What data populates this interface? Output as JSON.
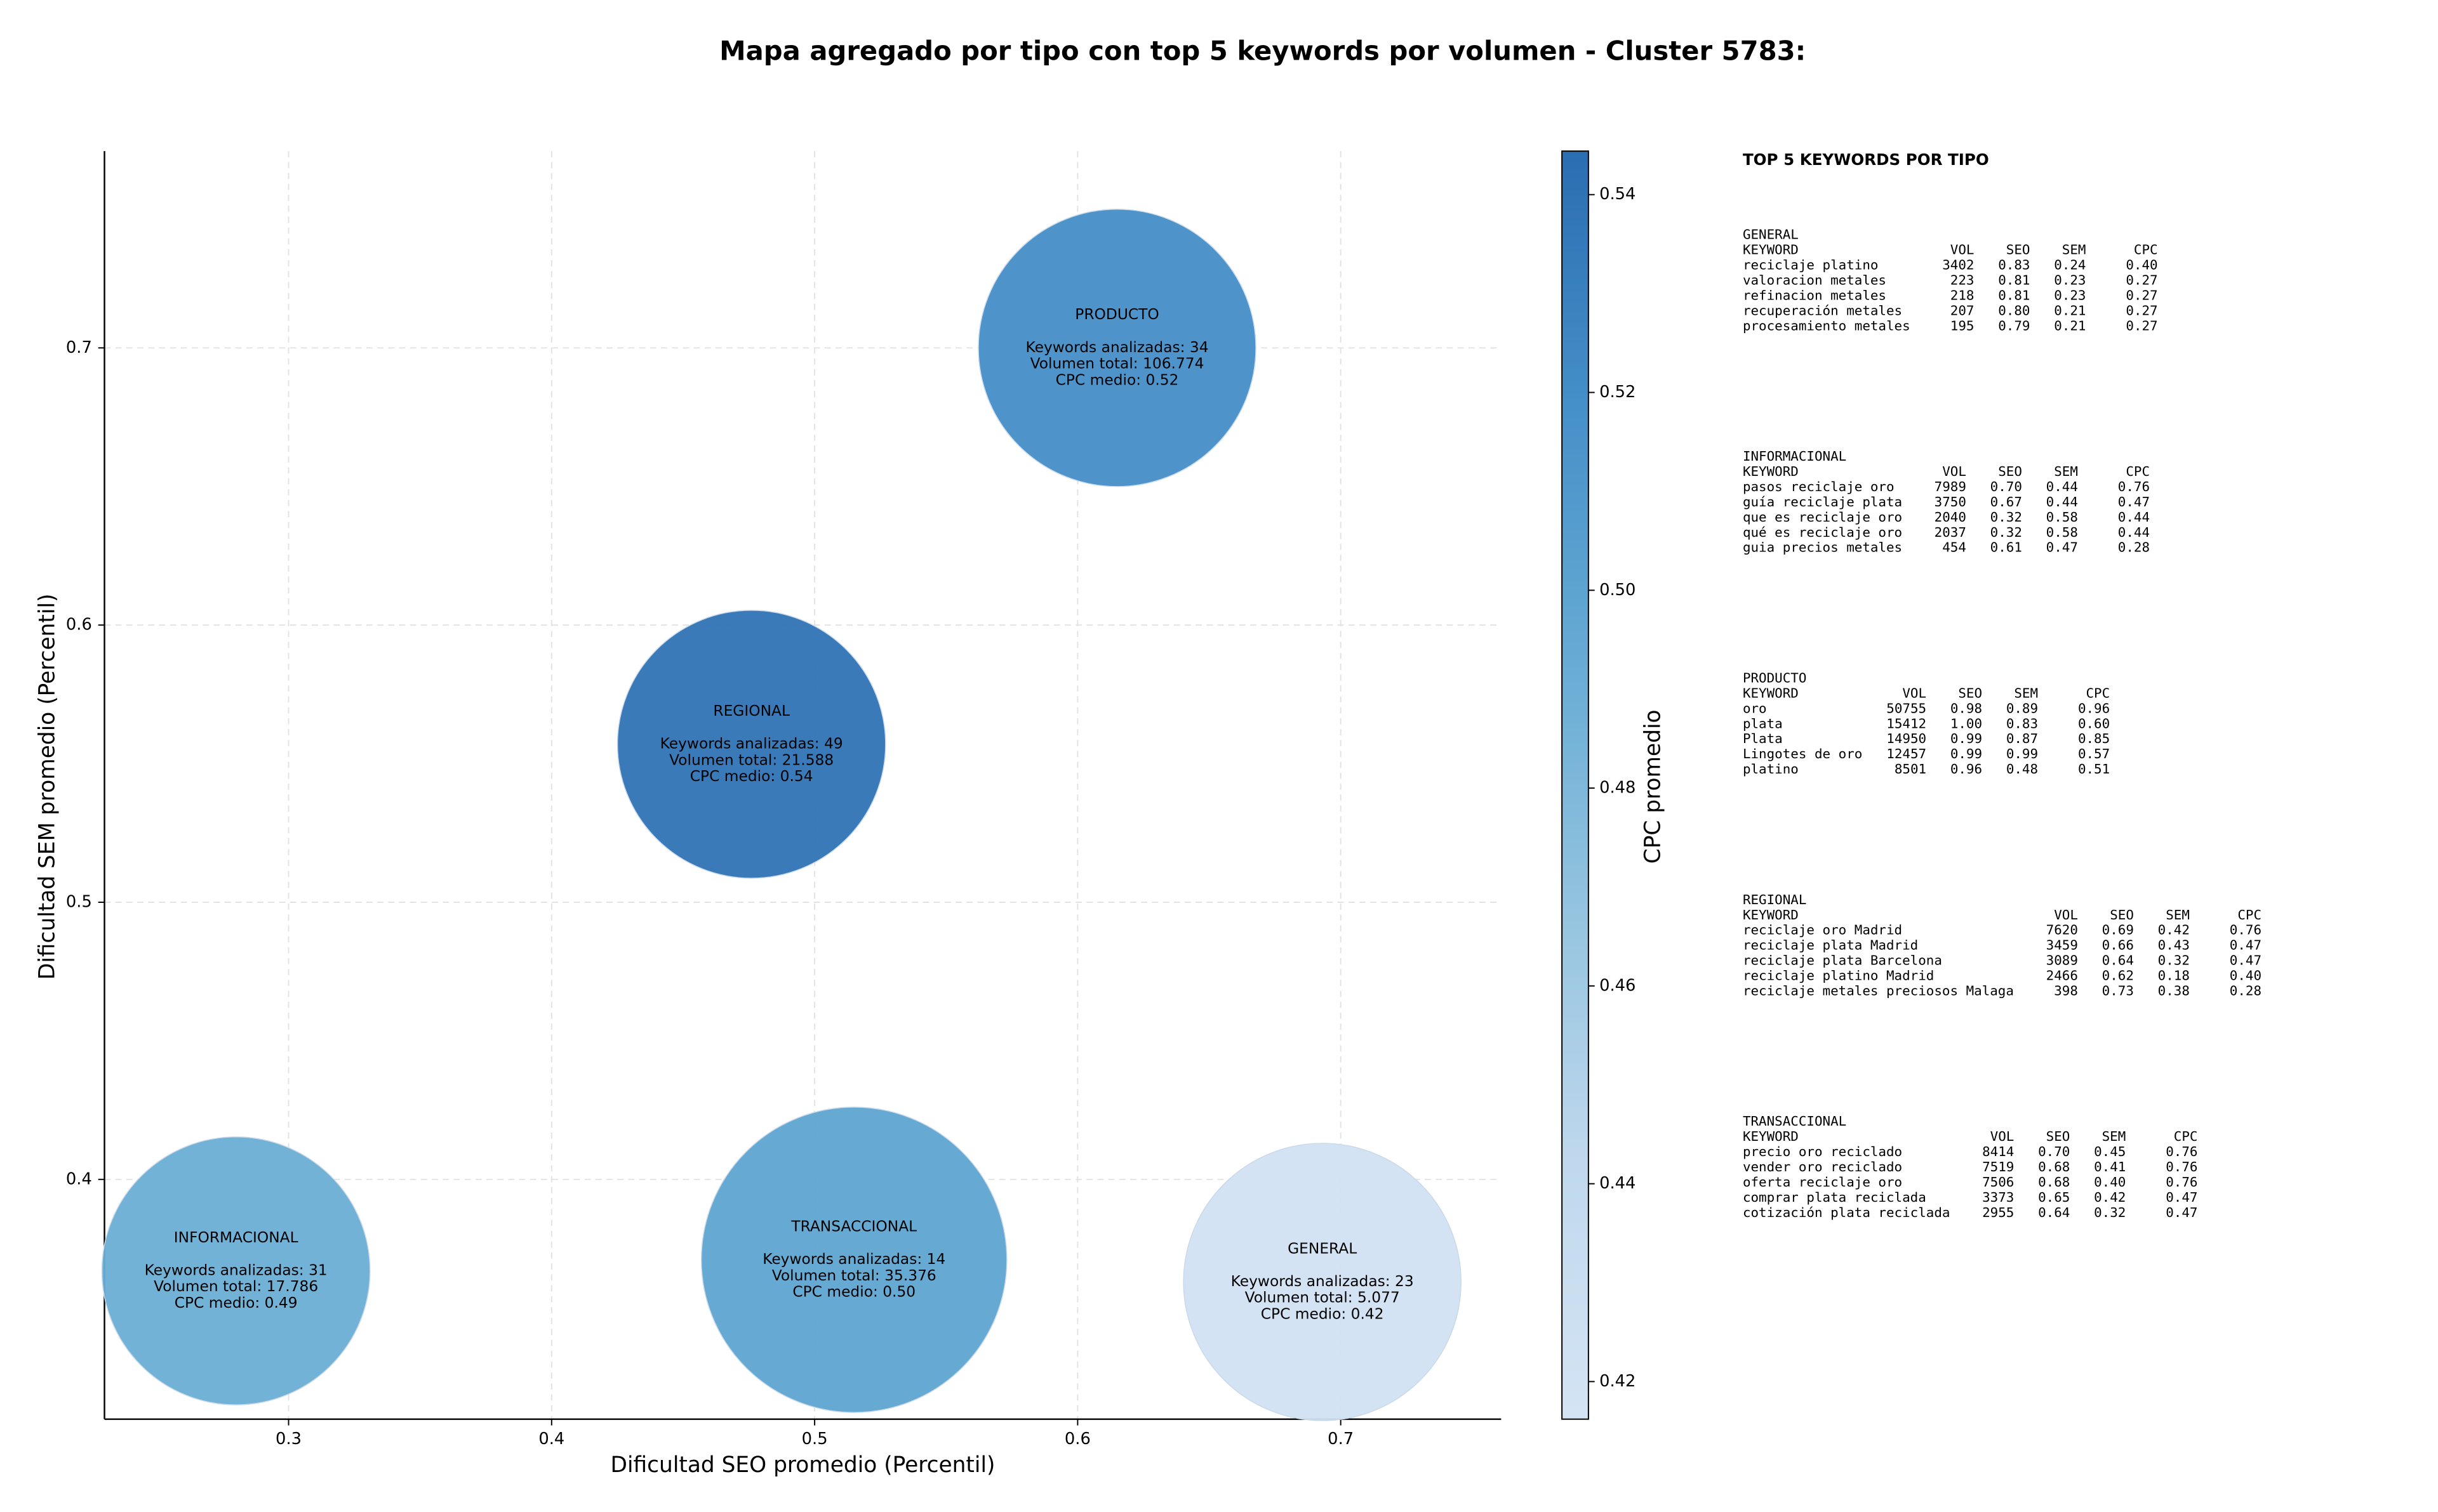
{
  "chart_data": {
    "type": "bubble",
    "title": "Mapa agregado por tipo con top 5 keywords por volumen - Cluster 5783:",
    "xlabel": "Dificultad SEO promedio (Percentil)",
    "ylabel": "Dificultad SEM promedio (Percentil)",
    "xlim": [
      0.23,
      0.761
    ],
    "ylim": [
      0.3135,
      0.771
    ],
    "xticks": [
      0.3,
      0.4,
      0.5,
      0.6,
      0.7
    ],
    "yticks": [
      0.4,
      0.5,
      0.6,
      0.7
    ],
    "grid": true,
    "labels": [
      "GENERAL",
      "INFORMACIONAL",
      "PRODUCTO",
      "REGIONAL",
      "TRANSACCIONAL"
    ],
    "x": [
      0.693,
      0.28,
      0.615,
      0.476,
      0.515
    ],
    "y": [
      0.363,
      0.367,
      0.7,
      0.557,
      0.371
    ],
    "sizes": [
      89,
      86,
      89,
      86,
      98
    ],
    "cpc": [
      0.42,
      0.49,
      0.52,
      0.54,
      0.5
    ],
    "annotations": [
      [
        "Keywords analizadas: 23",
        "Volumen total: 5.077",
        "CPC medio: 0.42"
      ],
      [
        "Keywords analizadas: 31",
        "Volumen total: 17.786",
        "CPC medio: 0.49"
      ],
      [
        "Keywords analizadas: 34",
        "Volumen total: 106.774",
        "CPC medio: 0.52"
      ],
      [
        "Keywords analizadas: 49",
        "Volumen total: 21.588",
        "CPC medio: 0.54"
      ],
      [
        "Keywords analizadas: 14",
        "Volumen total: 35.376",
        "CPC medio: 0.50"
      ]
    ],
    "colorbar": {
      "label": "CPC promedio",
      "lim": [
        0.4162,
        0.5444
      ],
      "ticks": [
        0.42,
        0.44,
        0.46,
        0.48,
        {
          "value": 0.5,
          "label": "0.50"
        },
        0.52,
        0.54
      ],
      "colormap": [
        "#d4e4f4",
        "#c0d8ed",
        "#94c4df",
        "#67abd4",
        "#4590c8",
        "#2b6db1"
      ]
    },
    "side_table": {
      "title": "TOP 5 KEYWORDS POR TIPO",
      "tables": [
        {
          "type": "GENERAL",
          "header": [
            "KEYWORD",
            "VOL",
            "SEO",
            "SEM",
            "CPC"
          ],
          "rows": [
            [
              "reciclaje platino",
              "3402",
              "0.83",
              "0.24",
              "0.40"
            ],
            [
              "valoracion metales",
              "223",
              "0.81",
              "0.23",
              "0.27"
            ],
            [
              "refinacion metales",
              "218",
              "0.81",
              "0.23",
              "0.27"
            ],
            [
              "recuperación metales",
              "207",
              "0.80",
              "0.21",
              "0.27"
            ],
            [
              "procesamiento metales",
              "195",
              "0.79",
              "0.21",
              "0.27"
            ]
          ]
        },
        {
          "type": "INFORMACIONAL",
          "header": [
            "KEYWORD",
            "VOL",
            "SEO",
            "SEM",
            "CPC"
          ],
          "rows": [
            [
              "pasos reciclaje oro",
              "7989",
              "0.70",
              "0.44",
              "0.76"
            ],
            [
              "guía reciclaje plata",
              "3750",
              "0.67",
              "0.44",
              "0.47"
            ],
            [
              "que es reciclaje oro",
              "2040",
              "0.32",
              "0.58",
              "0.44"
            ],
            [
              "qué es reciclaje oro",
              "2037",
              "0.32",
              "0.58",
              "0.44"
            ],
            [
              "guia precios metales",
              "454",
              "0.61",
              "0.47",
              "0.28"
            ]
          ]
        },
        {
          "type": "PRODUCTO",
          "header": [
            "KEYWORD",
            "VOL",
            "SEO",
            "SEM",
            "CPC"
          ],
          "rows": [
            [
              "oro",
              "50755",
              "0.98",
              "0.89",
              "0.96"
            ],
            [
              "plata",
              "15412",
              "1.00",
              "0.83",
              "0.60"
            ],
            [
              "Plata",
              "14950",
              "0.99",
              "0.87",
              "0.85"
            ],
            [
              "Lingotes de oro",
              "12457",
              "0.99",
              "0.99",
              "0.57"
            ],
            [
              "platino",
              "8501",
              "0.96",
              "0.48",
              "0.51"
            ]
          ]
        },
        {
          "type": "REGIONAL",
          "header": [
            "KEYWORD",
            "VOL",
            "SEO",
            "SEM",
            "CPC"
          ],
          "rows": [
            [
              "reciclaje oro Madrid",
              "7620",
              "0.69",
              "0.42",
              "0.76"
            ],
            [
              "reciclaje plata Madrid",
              "3459",
              "0.66",
              "0.43",
              "0.47"
            ],
            [
              "reciclaje plata Barcelona",
              "3089",
              "0.64",
              "0.32",
              "0.47"
            ],
            [
              "reciclaje platino Madrid",
              "2466",
              "0.62",
              "0.18",
              "0.40"
            ],
            [
              "reciclaje metales preciosos Malaga",
              "398",
              "0.73",
              "0.38",
              "0.28"
            ]
          ]
        },
        {
          "type": "TRANSACCIONAL",
          "header": [
            "KEYWORD",
            "VOL",
            "SEO",
            "SEM",
            "CPC"
          ],
          "rows": [
            [
              "precio oro reciclado",
              "8414",
              "0.70",
              "0.45",
              "0.76"
            ],
            [
              "vender oro reciclado",
              "7519",
              "0.68",
              "0.41",
              "0.76"
            ],
            [
              "oferta reciclaje oro",
              "7506",
              "0.68",
              "0.40",
              "0.76"
            ],
            [
              "comprar plata reciclada",
              "3373",
              "0.65",
              "0.42",
              "0.47"
            ],
            [
              "cotización plata reciclada",
              "2955",
              "0.64",
              "0.32",
              "0.47"
            ]
          ]
        }
      ]
    }
  }
}
